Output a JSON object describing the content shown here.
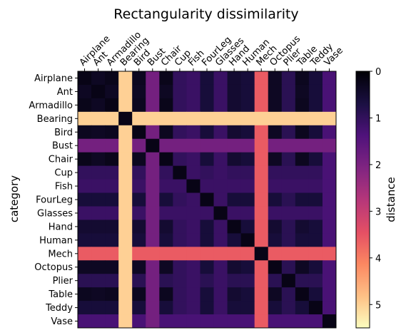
{
  "chart_data": {
    "type": "heatmap",
    "title": "Rectangularity dissimilarity",
    "ylabel": "category",
    "categories": [
      "Airplane",
      "Ant",
      "Armadillo",
      "Bearing",
      "Bird",
      "Bust",
      "Chair",
      "Cup",
      "Fish",
      "FourLeg",
      "Glasses",
      "Hand",
      "Human",
      "Mech",
      "Octopus",
      "Plier",
      "Table",
      "Teddy",
      "Vase"
    ],
    "colormap": "magma_r",
    "colorbar": {
      "label": "distance",
      "min": 0,
      "max": 5.5,
      "ticks": [
        "0",
        "1",
        "2",
        "3",
        "4",
        "5"
      ]
    },
    "group_level": [
      0.25,
      0.35,
      0.25,
      5.0,
      0.3,
      1.9,
      0.25,
      1.0,
      1.1,
      0.6,
      1.1,
      0.5,
      0.6,
      3.6,
      0.35,
      0.9,
      0.3,
      0.6,
      1.3
    ],
    "diagonal_value": 0
  }
}
